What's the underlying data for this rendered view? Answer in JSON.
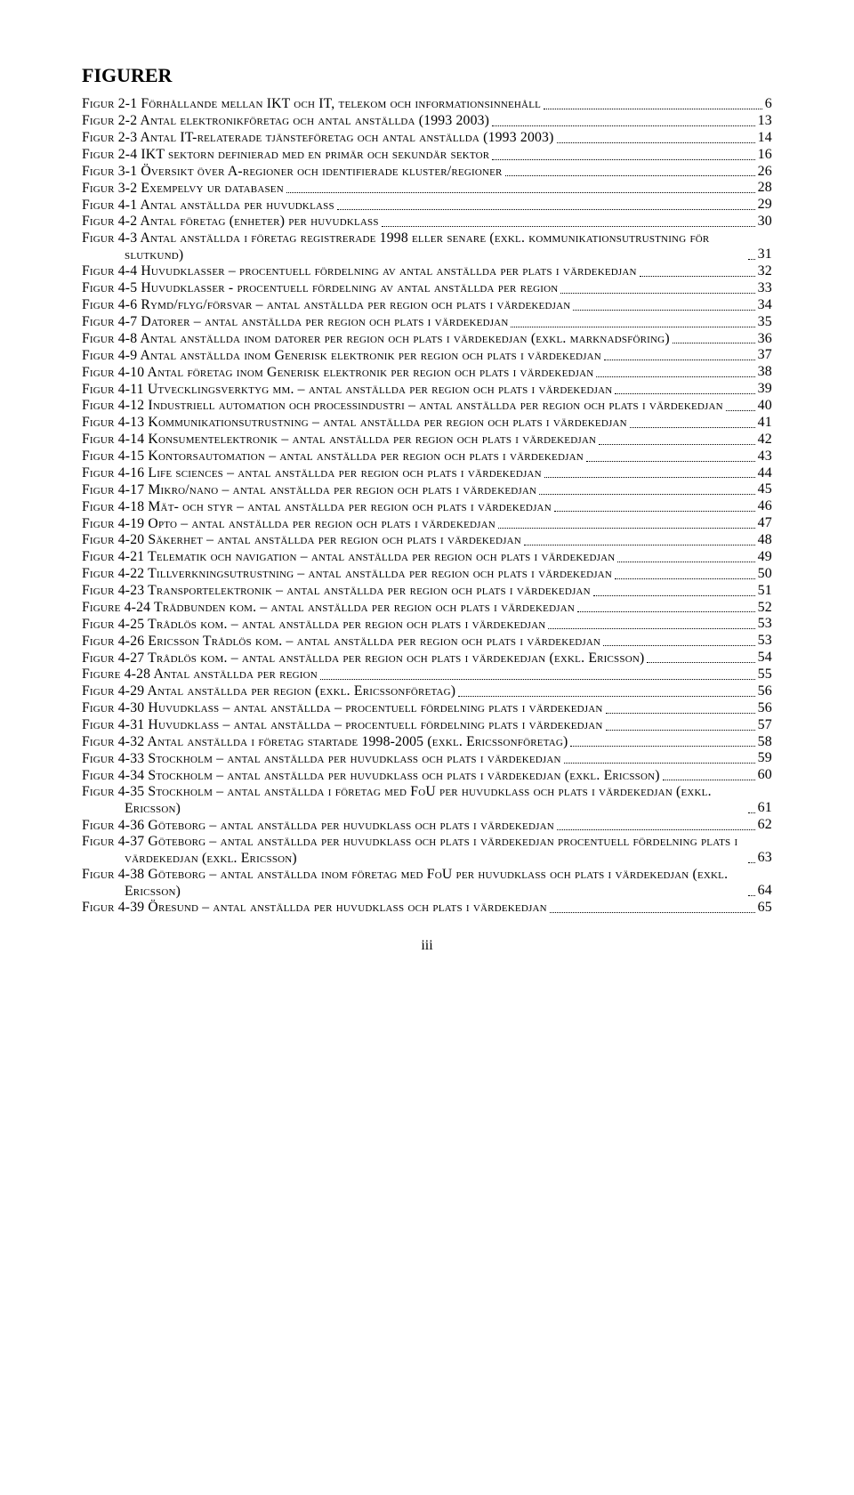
{
  "heading": "FIGURER",
  "page_number": "iii",
  "entries": [
    {
      "text": "Figur 2-1 Förhållande mellan IKT och IT, telekom och informationsinnehåll",
      "page": "6"
    },
    {
      "text": "Figur 2-2 Antal elektronikföretag och antal anställda (1993 2003)",
      "page": "13"
    },
    {
      "text": "Figur 2-3 Antal IT-relaterade tjänsteföretag och antal anställda (1993 2003)",
      "page": "14"
    },
    {
      "text": "Figur 2-4 IKT sektorn definierad med en primär och sekundär sektor",
      "page": "16"
    },
    {
      "text": "Figur 3-1 Översikt över A-regioner och identifierade kluster/regioner",
      "page": "26"
    },
    {
      "text": "Figur 3-2 Exempelvy ur databasen",
      "page": "28"
    },
    {
      "text": "Figur 4-1 Antal anställda per huvudklass",
      "page": "29"
    },
    {
      "text": "Figur 4-2 Antal företag (enheter) per huvudklass",
      "page": "30"
    },
    {
      "text": "Figur 4-3 Antal anställda i företag registrerade 1998 eller senare (exkl. kommunikationsutrustning för slutkund)",
      "page": "31",
      "wrap": true,
      "indent": true
    },
    {
      "text": "Figur 4-4 Huvudklasser – procentuell fördelning av antal anställda per plats i värdekedjan",
      "page": "32",
      "wrap": true,
      "indent": true
    },
    {
      "text": "Figur 4-5 Huvudklasser - procentuell fördelning av antal anställda per region",
      "page": "33"
    },
    {
      "text": "Figur 4-6  Rymd/flyg/försvar – antal anställda per region och plats i värdekedjan",
      "page": "34"
    },
    {
      "text": "Figur 4-7 Datorer – antal anställda per region och plats i värdekedjan",
      "page": "35"
    },
    {
      "text": "Figur 4-8 Antal anställda inom datorer per region och plats i värdekedjan (exkl. marknadsföring)",
      "page": "36",
      "wrap": true,
      "indent": true
    },
    {
      "text": "Figur 4-9 Antal anställda inom Generisk elektronik per region och plats i värdekedjan",
      "page": "37"
    },
    {
      "text": "Figur 4-10 Antal företag inom Generisk elektronik per region och plats i värdekedjan",
      "page": "38"
    },
    {
      "text": "Figur 4-11 Utvecklingsverktyg mm. – antal anställda per region och plats i värdekedjan ",
      "page": "39",
      "wrap": true,
      "indent": true
    },
    {
      "text": "Figur 4-12 Industriell automation och processindustri – antal anställda per region och plats i värdekedjan",
      "page": "40",
      "wrap": true,
      "indent": true
    },
    {
      "text": "Figur 4-13  Kommunikationsutrustning – antal anställda per region och plats i värdekedjan",
      "page": "41",
      "wrap": true,
      "indent": true
    },
    {
      "text": "Figur 4-14 Konsumentelektronik – antal anställda per region och plats i värdekedjan",
      "page": "42"
    },
    {
      "text": "Figur 4-15 Kontorsautomation – antal anställda per region och plats i värdekedjan",
      "page": "43"
    },
    {
      "text": "Figur 4-16 Life sciences – antal anställda per region och plats i värdekedjan",
      "page": "44"
    },
    {
      "text": "Figur 4-17 Mikro/nano – antal anställda per region och plats i värdekedjan",
      "page": "45"
    },
    {
      "text": "Figur 4-18 Mät- och styr – antal anställda per region och plats i värdekedjan",
      "page": "46"
    },
    {
      "text": "Figur 4-19 Opto – antal anställda per region och plats i värdekedjan",
      "page": "47"
    },
    {
      "text": "Figur 4-20 Säkerhet – antal anställda per region och plats i värdekedjan",
      "page": "48"
    },
    {
      "text": "Figur 4-21 Telematik och navigation – antal anställda per region och plats i värdekedjan ",
      "page": "49",
      "wrap": true,
      "indent": true
    },
    {
      "text": "Figur 4-22 Tillverkningsutrustning – antal anställda per region och plats i värdekedjan ",
      "page": "50",
      "wrap": true,
      "indent": true
    },
    {
      "text": "Figur 4-23 Transportelektronik – antal anställda per region och plats i värdekedjan",
      "page": "51"
    },
    {
      "text": "Figure 4-24 Trådbunden kom. – antal anställda per region och plats i värdekedjan",
      "page": "52"
    },
    {
      "text": "Figur 4-25 Trådlös kom. – antal anställda per region och plats i värdekedjan",
      "page": "53"
    },
    {
      "text": "Figur 4-26 Ericsson Trådlös kom. – antal anställda per region och plats i värdekedjan",
      "page": "53"
    },
    {
      "text": "Figur 4-27 Trådlös kom. – antal anställda per region och plats i värdekedjan (exkl. Ericsson)",
      "page": "54",
      "wrap": true,
      "indent": true
    },
    {
      "text": "Figure 4-28 Antal anställda per region",
      "page": "55"
    },
    {
      "text": "Figur 4-29 Antal anställda per region (exkl. Ericssonföretag)",
      "page": "56"
    },
    {
      "text": "Figur 4-30 Huvudklass – antal anställda – procentuell fördelning plats i värdekedjan",
      "page": "56"
    },
    {
      "text": "Figur 4-31 Huvudklass – antal anställda – procentuell fördelning plats i värdekedjan",
      "page": "57"
    },
    {
      "text": "Figur 4-32 Antal anställda i företag startade 1998-2005 (exkl. Ericssonföretag)",
      "page": "58"
    },
    {
      "text": "Figur 4-33 Stockholm – antal anställda per huvudklass och plats i värdekedjan",
      "page": "59"
    },
    {
      "text": "Figur 4-34 Stockholm – antal anställda per huvudklass och plats i värdekedjan (exkl. Ericsson)",
      "page": "60",
      "wrap": true,
      "indent": true
    },
    {
      "text": "Figur 4-35 Stockholm – antal anställda i företag med FoU per huvudklass och plats i värdekedjan (exkl. Ericsson)",
      "page": "61",
      "wrap": true,
      "indent": true
    },
    {
      "text": "Figur 4-36 Göteborg – antal anställda per huvudklass och plats i värdekedjan",
      "page": "62"
    },
    {
      "text": "Figur 4-37 Göteborg – antal anställda per huvudklass och plats i värdekedjan procentuell fördelning plats i värdekedjan (exkl. Ericsson)",
      "page": "63",
      "wrap": true,
      "indent": true
    },
    {
      "text": "Figur 4-38  Göteborg – antal anställda inom företag med FoU per huvudklass och plats i värdekedjan (exkl. Ericsson)",
      "page": "64",
      "wrap": true,
      "indent": true
    },
    {
      "text": "Figur 4-39 Öresund – antal anställda per huvudklass och plats i värdekedjan",
      "page": "65"
    }
  ]
}
